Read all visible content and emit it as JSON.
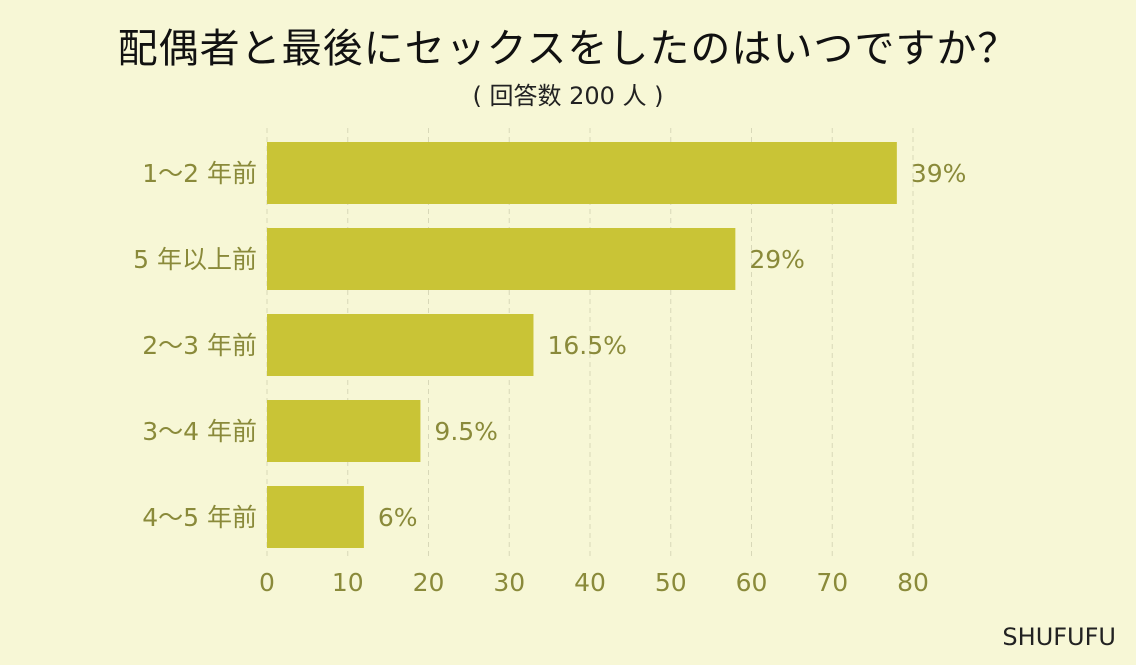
{
  "chart_data": {
    "type": "bar",
    "orientation": "horizontal",
    "title": "配偶者と最後にセックスをしたのはいつですか？",
    "subtitle": "( 回答数 200 人 )",
    "categories": [
      "1〜2 年前",
      "5 年以上前",
      "2〜3 年前",
      "3〜4 年前",
      "4〜5 年前"
    ],
    "values": [
      78,
      58,
      33,
      19,
      12
    ],
    "value_labels": [
      "39%",
      "29%",
      "16.5%",
      "9.5%",
      "6%"
    ],
    "xlim": [
      0,
      80
    ],
    "xticks": [
      "0",
      "10",
      "20",
      "30",
      "40",
      "50",
      "60",
      "70",
      "80"
    ],
    "grid": true,
    "colors": {
      "bar": "#c9c436",
      "background": "#f7f7d6",
      "grid": "#d8d8b8",
      "label": "#8a8a3a"
    }
  },
  "credit": "SHUFUFU"
}
